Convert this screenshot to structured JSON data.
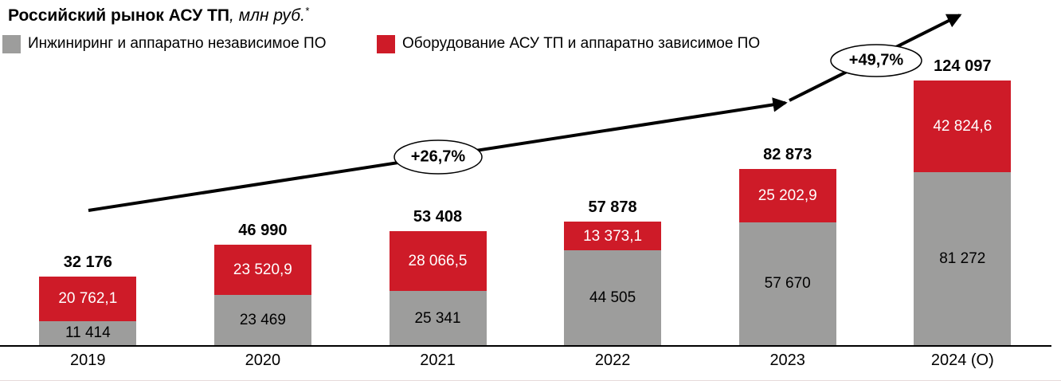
{
  "title": {
    "main": "Российский рынок АСУ ТП",
    "unit": ", млн руб.",
    "footnote_mark": "*"
  },
  "legend": [
    {
      "label": "Инжиниринг и аппаратно независимое ПО",
      "color": "#9d9d9c"
    },
    {
      "label": "Оборудование АСУ ТП и аппаратно зависимое ПО",
      "color": "#ce1b28"
    }
  ],
  "chart_data": {
    "type": "bar",
    "stacked": true,
    "title": "Российский рынок АСУ ТП, млн руб.*",
    "xlabel": "",
    "ylabel": "млн руб.",
    "grid": false,
    "legend_position": "top-left",
    "categories": [
      "2019",
      "2020",
      "2021",
      "2022",
      "2023",
      "2024 (О)"
    ],
    "series": [
      {
        "name": "Инжиниринг и аппаратно независимое ПО",
        "color": "#9d9d9c",
        "text_color": "#000000",
        "values": [
          11414,
          23469,
          25341,
          44505,
          57670,
          81272
        ],
        "labels": [
          "11 414",
          "23 469",
          "25 341",
          "44 505",
          "57 670",
          "81 272"
        ]
      },
      {
        "name": "Оборудование АСУ ТП и аппаратно зависимое ПО",
        "color": "#ce1b28",
        "text_color": "#ffffff",
        "values": [
          20762.1,
          23520.9,
          28066.5,
          13373.1,
          25202.9,
          42824.6
        ],
        "labels": [
          "20 762,1",
          "23 520,9",
          "28 066,5",
          "13 373,1",
          "25 202,9",
          "42 824,6"
        ]
      }
    ],
    "totals": [
      32176,
      46990,
      53408,
      57878,
      82873,
      124097
    ],
    "total_labels": [
      "32 176",
      "46 990",
      "53 408",
      "57 878",
      "82 873",
      "124 097"
    ],
    "ylim": [
      0,
      130000
    ],
    "annotations": [
      {
        "label": "+26,7%",
        "between": [
          "2019",
          "2023"
        ]
      },
      {
        "label": "+49,7%",
        "between": [
          "2023",
          "2024 (О)"
        ]
      }
    ]
  }
}
